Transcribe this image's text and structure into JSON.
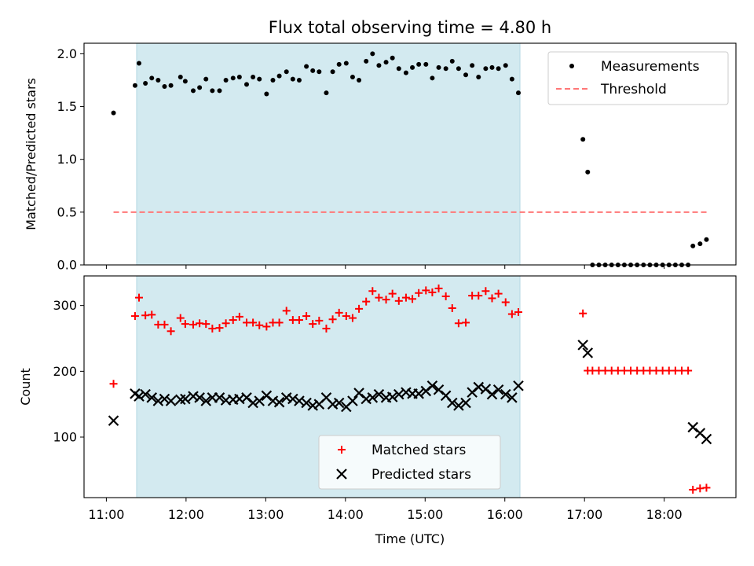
{
  "chart_data": {
    "title": "Flux total observing time = 4.80 h",
    "xlabel": "Time (UTC)",
    "x_tick_labels": [
      "11:00",
      "12:00",
      "13:00",
      "14:00",
      "15:00",
      "16:00",
      "17:00",
      "18:00"
    ],
    "x_ticks_hours": [
      11,
      12,
      13,
      14,
      15,
      16,
      17,
      18
    ],
    "xlim_hours": [
      10.72,
      18.9
    ],
    "shaded_span_hours": [
      11.38,
      16.19
    ],
    "shade_color": "#d3eaf0",
    "panels": [
      {
        "type": "scatter",
        "ylabel": "Matched/Predicted stars",
        "ylim": [
          0,
          2.1
        ],
        "y_ticks": [
          0.0,
          0.5,
          1.0,
          1.5,
          2.0
        ],
        "y_tick_labels": [
          "0.0",
          "0.5",
          "1.0",
          "1.5",
          "2.0"
        ],
        "legend_placement": "top-right",
        "series": [
          {
            "name": "Measurements",
            "marker": "dot",
            "color": "#000000",
            "points": [
              [
                11.09,
                1.44
              ],
              [
                11.36,
                1.7
              ],
              [
                11.41,
                1.91
              ],
              [
                11.49,
                1.72
              ],
              [
                11.57,
                1.77
              ],
              [
                11.65,
                1.75
              ],
              [
                11.73,
                1.69
              ],
              [
                11.81,
                1.7
              ],
              [
                11.93,
                1.78
              ],
              [
                11.99,
                1.74
              ],
              [
                12.09,
                1.65
              ],
              [
                12.17,
                1.68
              ],
              [
                12.25,
                1.76
              ],
              [
                12.33,
                1.65
              ],
              [
                12.42,
                1.65
              ],
              [
                12.5,
                1.75
              ],
              [
                12.59,
                1.77
              ],
              [
                12.67,
                1.78
              ],
              [
                12.76,
                1.71
              ],
              [
                12.84,
                1.78
              ],
              [
                12.92,
                1.76
              ],
              [
                13.01,
                1.62
              ],
              [
                13.09,
                1.75
              ],
              [
                13.17,
                1.79
              ],
              [
                13.26,
                1.83
              ],
              [
                13.34,
                1.76
              ],
              [
                13.42,
                1.75
              ],
              [
                13.51,
                1.88
              ],
              [
                13.59,
                1.84
              ],
              [
                13.67,
                1.83
              ],
              [
                13.76,
                1.63
              ],
              [
                13.84,
                1.83
              ],
              [
                13.92,
                1.9
              ],
              [
                14.01,
                1.91
              ],
              [
                14.09,
                1.78
              ],
              [
                14.17,
                1.75
              ],
              [
                14.26,
                1.93
              ],
              [
                14.34,
                2.0
              ],
              [
                14.42,
                1.89
              ],
              [
                14.51,
                1.92
              ],
              [
                14.59,
                1.96
              ],
              [
                14.67,
                1.86
              ],
              [
                14.76,
                1.82
              ],
              [
                14.84,
                1.87
              ],
              [
                14.92,
                1.9
              ],
              [
                15.01,
                1.9
              ],
              [
                15.09,
                1.77
              ],
              [
                15.17,
                1.87
              ],
              [
                15.26,
                1.86
              ],
              [
                15.34,
                1.93
              ],
              [
                15.42,
                1.86
              ],
              [
                15.51,
                1.8
              ],
              [
                15.59,
                1.89
              ],
              [
                15.67,
                1.78
              ],
              [
                15.76,
                1.86
              ],
              [
                15.84,
                1.87
              ],
              [
                15.92,
                1.86
              ],
              [
                16.01,
                1.89
              ],
              [
                16.09,
                1.76
              ],
              [
                16.17,
                1.63
              ],
              [
                16.98,
                1.19
              ],
              [
                17.04,
                0.88
              ],
              [
                17.1,
                0.0
              ],
              [
                17.18,
                0.0
              ],
              [
                17.26,
                0.0
              ],
              [
                17.34,
                0.0
              ],
              [
                17.42,
                0.0
              ],
              [
                17.5,
                0.0
              ],
              [
                17.58,
                0.0
              ],
              [
                17.66,
                0.0
              ],
              [
                17.74,
                0.0
              ],
              [
                17.82,
                0.0
              ],
              [
                17.9,
                0.0
              ],
              [
                17.98,
                0.0
              ],
              [
                18.06,
                0.0
              ],
              [
                18.14,
                0.0
              ],
              [
                18.22,
                0.0
              ],
              [
                18.3,
                0.0
              ],
              [
                18.36,
                0.18
              ],
              [
                18.45,
                0.2
              ],
              [
                18.53,
                0.24
              ]
            ]
          },
          {
            "name": "Threshold",
            "marker": "dashed-line",
            "color": "#ff7777",
            "points": [
              [
                11.09,
                0.5
              ],
              [
                18.55,
                0.5
              ]
            ]
          }
        ]
      },
      {
        "type": "scatter",
        "ylabel": "Count",
        "ylim": [
          8,
          345
        ],
        "y_ticks": [
          100,
          200,
          300
        ],
        "y_tick_labels": [
          "100",
          "200",
          "300"
        ],
        "legend_placement": "bottom-center",
        "series": [
          {
            "name": "Matched stars",
            "marker": "plus",
            "color": "#ff0000",
            "points": [
              [
                11.09,
                181
              ],
              [
                11.36,
                284
              ],
              [
                11.41,
                312
              ],
              [
                11.49,
                285
              ],
              [
                11.57,
                286
              ],
              [
                11.65,
                271
              ],
              [
                11.73,
                271
              ],
              [
                11.81,
                261
              ],
              [
                11.93,
                281
              ],
              [
                11.99,
                272
              ],
              [
                12.09,
                271
              ],
              [
                12.17,
                273
              ],
              [
                12.25,
                272
              ],
              [
                12.33,
                265
              ],
              [
                12.42,
                266
              ],
              [
                12.5,
                273
              ],
              [
                12.59,
                278
              ],
              [
                12.67,
                283
              ],
              [
                12.76,
                274
              ],
              [
                12.84,
                274
              ],
              [
                12.92,
                270
              ],
              [
                13.01,
                268
              ],
              [
                13.09,
                274
              ],
              [
                13.17,
                274
              ],
              [
                13.26,
                292
              ],
              [
                13.34,
                278
              ],
              [
                13.42,
                278
              ],
              [
                13.51,
                284
              ],
              [
                13.59,
                272
              ],
              [
                13.67,
                277
              ],
              [
                13.76,
                265
              ],
              [
                13.84,
                279
              ],
              [
                13.92,
                289
              ],
              [
                14.01,
                284
              ],
              [
                14.09,
                281
              ],
              [
                14.17,
                295
              ],
              [
                14.26,
                306
              ],
              [
                14.34,
                322
              ],
              [
                14.42,
                312
              ],
              [
                14.51,
                309
              ],
              [
                14.59,
                318
              ],
              [
                14.67,
                307
              ],
              [
                14.76,
                312
              ],
              [
                14.84,
                310
              ],
              [
                14.92,
                319
              ],
              [
                15.01,
                323
              ],
              [
                15.09,
                320
              ],
              [
                15.17,
                326
              ],
              [
                15.26,
                314
              ],
              [
                15.34,
                296
              ],
              [
                15.42,
                273
              ],
              [
                15.51,
                274
              ],
              [
                15.59,
                315
              ],
              [
                15.67,
                315
              ],
              [
                15.76,
                322
              ],
              [
                15.84,
                311
              ],
              [
                15.92,
                318
              ],
              [
                16.01,
                305
              ],
              [
                16.09,
                287
              ],
              [
                16.17,
                290
              ],
              [
                16.98,
                288
              ],
              [
                17.04,
                201
              ],
              [
                17.1,
                201
              ],
              [
                17.18,
                201
              ],
              [
                17.26,
                201
              ],
              [
                17.34,
                201
              ],
              [
                17.42,
                201
              ],
              [
                17.5,
                201
              ],
              [
                17.58,
                201
              ],
              [
                17.66,
                201
              ],
              [
                17.74,
                201
              ],
              [
                17.82,
                201
              ],
              [
                17.9,
                201
              ],
              [
                17.98,
                201
              ],
              [
                18.06,
                201
              ],
              [
                18.14,
                201
              ],
              [
                18.22,
                201
              ],
              [
                18.3,
                201
              ],
              [
                18.36,
                20
              ],
              [
                18.45,
                22
              ],
              [
                18.53,
                23
              ]
            ]
          },
          {
            "name": "Predicted stars",
            "marker": "x",
            "color": "#000000",
            "points": [
              [
                11.09,
                125
              ],
              [
                11.36,
                166
              ],
              [
                11.41,
                162
              ],
              [
                11.49,
                165
              ],
              [
                11.57,
                160
              ],
              [
                11.65,
                155
              ],
              [
                11.73,
                158
              ],
              [
                11.81,
                155
              ],
              [
                11.93,
                157
              ],
              [
                11.99,
                158
              ],
              [
                12.09,
                162
              ],
              [
                12.17,
                160
              ],
              [
                12.25,
                155
              ],
              [
                12.33,
                160
              ],
              [
                12.42,
                160
              ],
              [
                12.5,
                156
              ],
              [
                12.59,
                157
              ],
              [
                12.67,
                158
              ],
              [
                12.76,
                160
              ],
              [
                12.84,
                152
              ],
              [
                12.92,
                155
              ],
              [
                13.01,
                163
              ],
              [
                13.09,
                155
              ],
              [
                13.17,
                153
              ],
              [
                13.26,
                160
              ],
              [
                13.34,
                158
              ],
              [
                13.42,
                155
              ],
              [
                13.51,
                152
              ],
              [
                13.59,
                148
              ],
              [
                13.67,
                150
              ],
              [
                13.76,
                160
              ],
              [
                13.84,
                150
              ],
              [
                13.92,
                152
              ],
              [
                14.01,
                146
              ],
              [
                14.09,
                155
              ],
              [
                14.17,
                167
              ],
              [
                14.26,
                158
              ],
              [
                14.34,
                160
              ],
              [
                14.42,
                165
              ],
              [
                14.51,
                160
              ],
              [
                14.59,
                161
              ],
              [
                14.67,
                165
              ],
              [
                14.76,
                168
              ],
              [
                14.84,
                166
              ],
              [
                14.92,
                166
              ],
              [
                15.01,
                170
              ],
              [
                15.09,
                178
              ],
              [
                15.17,
                172
              ],
              [
                15.26,
                163
              ],
              [
                15.34,
                152
              ],
              [
                15.42,
                148
              ],
              [
                15.51,
                152
              ],
              [
                15.59,
                168
              ],
              [
                15.67,
                176
              ],
              [
                15.76,
                173
              ],
              [
                15.84,
                165
              ],
              [
                15.92,
                172
              ],
              [
                16.01,
                165
              ],
              [
                16.09,
                160
              ],
              [
                16.17,
                178
              ],
              [
                16.98,
                240
              ],
              [
                17.04,
                228
              ],
              [
                18.36,
                115
              ],
              [
                18.45,
                106
              ],
              [
                18.53,
                97
              ]
            ]
          }
        ]
      }
    ]
  }
}
